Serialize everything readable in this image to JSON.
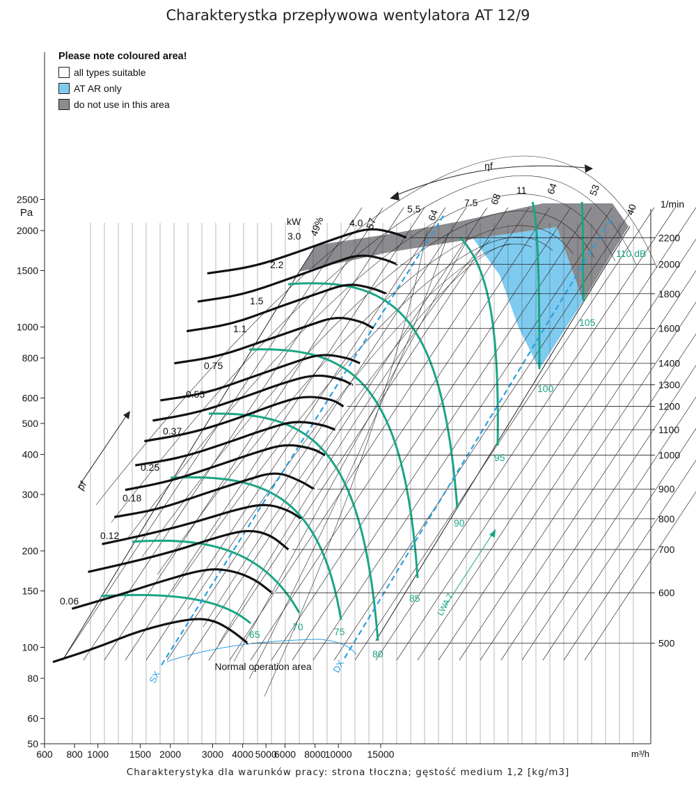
{
  "page": {
    "title": "Charakterystka przepływowa wentylatora AT 12/9",
    "subtitle": "Charakterystyka dla warunków pracy: strona tłoczna; gęstość medium 1,2 [kg/m3]"
  },
  "legend": {
    "title": "Please note coloured area!",
    "items": [
      {
        "label": "all types suitable",
        "color": "#ffffff"
      },
      {
        "label": "AT AR only",
        "color": "#7fcbf0"
      },
      {
        "label": "do not use in this area",
        "color": "#8c8c90"
      }
    ]
  },
  "colors": {
    "speed_curve": "#111111",
    "sound_curve": "#1aa585",
    "system_line": "#2a9fe0",
    "grid": "#333333"
  },
  "chart_data": {
    "type": "line",
    "x_axis": {
      "unit": "m³/h",
      "scale": "log",
      "tick_labels": [
        "600",
        "800",
        "1000",
        "1500",
        "2000",
        "3000",
        "4000",
        "5000",
        "6000",
        "8000",
        "10000",
        "15000"
      ]
    },
    "y_axis": {
      "unit": "Pa",
      "scale": "log",
      "tick_labels": [
        "50",
        "60",
        "80",
        "100",
        "150",
        "200",
        "300",
        "400",
        "500",
        "600",
        "800",
        "1000",
        "1500",
        "2000",
        "2500"
      ]
    },
    "speed_axis": {
      "unit": "1/min",
      "tick_labels": [
        "500",
        "600",
        "700",
        "800",
        "900",
        "1000",
        "1100",
        "1200",
        "1300",
        "1400",
        "1600",
        "1800",
        "2000",
        "2200"
      ]
    },
    "power_label": "kW",
    "power_labels": [
      "0.06",
      "0.12",
      "0.18",
      "0.25",
      "0.37",
      "0.55",
      "0.75",
      "1.1",
      "1.5",
      "2.2",
      "3.0",
      "4.0",
      "5.5",
      "7.5",
      "11"
    ],
    "efficiency_labels": [
      "49%",
      "57",
      "64",
      "68",
      "64",
      "53",
      "40"
    ],
    "sound_labels": [
      "65",
      "70",
      "75",
      "80",
      "85",
      "90",
      "95",
      "100",
      "105",
      "110 dB"
    ],
    "sound_axis_label": "LWA 7",
    "pressure_axis_label": "pf",
    "efficiency_axis_label": "ηf",
    "system_lines": [
      "SX",
      "DX"
    ],
    "annotation": "Normal operation area",
    "speed_curves": [
      {
        "rpm": 500,
        "points": [
          [
            650,
            90
          ],
          [
            1000,
            100
          ],
          [
            1500,
            113
          ],
          [
            2400,
            123
          ],
          [
            3000,
            122
          ],
          [
            3600,
            113
          ],
          [
            4200,
            103
          ]
        ]
      },
      {
        "rpm": 600,
        "points": [
          [
            780,
            132
          ],
          [
            1200,
            145
          ],
          [
            1800,
            160
          ],
          [
            2800,
            176
          ],
          [
            3600,
            174
          ],
          [
            4500,
            163
          ],
          [
            5300,
            148
          ]
        ]
      },
      {
        "rpm": 700,
        "points": [
          [
            910,
            172
          ],
          [
            1400,
            185
          ],
          [
            2100,
            200
          ],
          [
            3200,
            222
          ],
          [
            4200,
            233
          ],
          [
            5200,
            225
          ],
          [
            6200,
            202
          ]
        ]
      },
      {
        "rpm": 800,
        "points": [
          [
            1040,
            210
          ],
          [
            1600,
            225
          ],
          [
            2500,
            245
          ],
          [
            3800,
            270
          ],
          [
            5000,
            281
          ],
          [
            6200,
            268
          ],
          [
            7000,
            252
          ]
        ]
      },
      {
        "rpm": 900,
        "points": [
          [
            1170,
            255
          ],
          [
            1800,
            270
          ],
          [
            2700,
            300
          ],
          [
            4000,
            330
          ],
          [
            5500,
            355
          ],
          [
            7000,
            330
          ],
          [
            7900,
            312
          ]
        ]
      },
      {
        "rpm": 1000,
        "points": [
          [
            1300,
            310
          ],
          [
            2000,
            330
          ],
          [
            3000,
            365
          ],
          [
            4500,
            405
          ],
          [
            6000,
            432
          ],
          [
            7800,
            418
          ],
          [
            8800,
            398
          ]
        ]
      },
      {
        "rpm": 1100,
        "points": [
          [
            1430,
            370
          ],
          [
            2200,
            390
          ],
          [
            3300,
            430
          ],
          [
            5000,
            480
          ],
          [
            6600,
            510
          ],
          [
            8600,
            495
          ],
          [
            9700,
            478
          ]
        ]
      },
      {
        "rpm": 1200,
        "points": [
          [
            1560,
            440
          ],
          [
            2400,
            465
          ],
          [
            3600,
            510
          ],
          [
            5500,
            575
          ],
          [
            7200,
            610
          ],
          [
            9400,
            595
          ],
          [
            10500,
            565
          ]
        ]
      },
      {
        "rpm": 1300,
        "points": [
          [
            1690,
            510
          ],
          [
            2600,
            540
          ],
          [
            3900,
            598
          ],
          [
            6000,
            672
          ],
          [
            8000,
            712
          ],
          [
            10200,
            690
          ],
          [
            11400,
            660
          ]
        ]
      },
      {
        "rpm": 1400,
        "points": [
          [
            1820,
            590
          ],
          [
            2800,
            620
          ],
          [
            4200,
            690
          ],
          [
            6500,
            775
          ],
          [
            8500,
            826
          ],
          [
            11000,
            800
          ],
          [
            12300,
            770
          ]
        ]
      },
      {
        "rpm": 1600,
        "points": [
          [
            2080,
            770
          ],
          [
            3200,
            810
          ],
          [
            4800,
            900
          ],
          [
            7500,
            1010
          ],
          [
            9800,
            1080
          ],
          [
            12500,
            1040
          ],
          [
            14000,
            990
          ]
        ]
      },
      {
        "rpm": 1800,
        "points": [
          [
            2340,
            970
          ],
          [
            3600,
            1020
          ],
          [
            5400,
            1140
          ],
          [
            8400,
            1280
          ],
          [
            11000,
            1370
          ],
          [
            14000,
            1320
          ],
          [
            15800,
            1270
          ]
        ]
      },
      {
        "rpm": 2000,
        "points": [
          [
            2600,
            1200
          ],
          [
            4000,
            1260
          ],
          [
            6000,
            1400
          ],
          [
            9400,
            1580
          ],
          [
            12300,
            1690
          ],
          [
            15500,
            1630
          ],
          [
            17500,
            1570
          ]
        ]
      },
      {
        "rpm": 2200,
        "points": [
          [
            2850,
            1470
          ],
          [
            4400,
            1540
          ],
          [
            6600,
            1700
          ],
          [
            10300,
            1920
          ],
          [
            13500,
            2040
          ],
          [
            17000,
            1970
          ],
          [
            19200,
            1900
          ]
        ]
      }
    ]
  }
}
